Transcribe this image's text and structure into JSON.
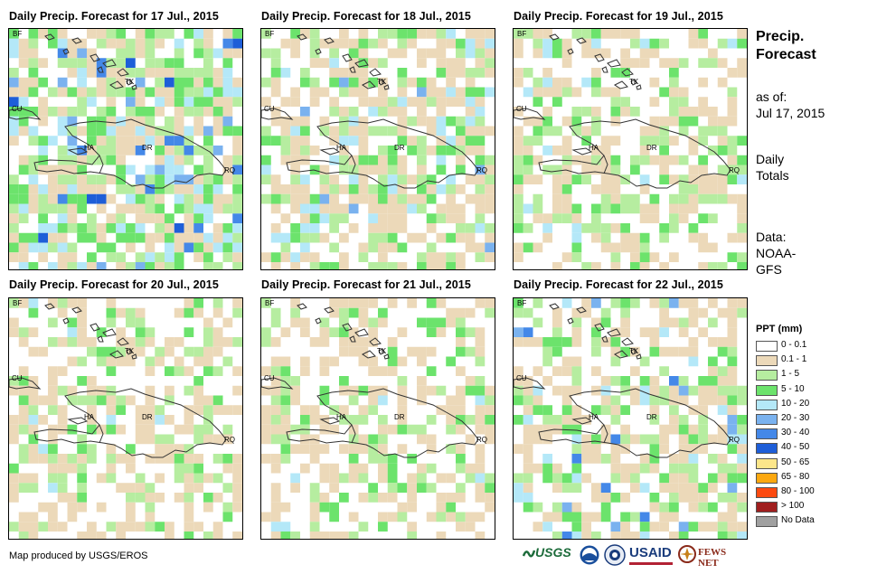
{
  "panels": [
    {
      "title": "Daily Precip. Forecast for 17 Jul., 2015",
      "day": 0
    },
    {
      "title": "Daily Precip. Forecast for 18 Jul., 2015",
      "day": 1
    },
    {
      "title": "Daily Precip. Forecast for 19 Jul., 2015",
      "day": 2
    },
    {
      "title": "Daily Precip. Forecast for 20 Jul., 2015",
      "day": 3
    },
    {
      "title": "Daily Precip. Forecast for 21 Jul., 2015",
      "day": 4
    },
    {
      "title": "Daily Precip. Forecast for 22 Jul., 2015",
      "day": 5
    }
  ],
  "map_labels": {
    "bf": "BF",
    "cu": "CU",
    "tk": "TK",
    "ha": "HA",
    "dr": "DR",
    "rq": "RQ"
  },
  "side": {
    "title_line1": "Precip.",
    "title_line2": "Forecast",
    "asof_line1": "as of:",
    "asof_line2": "Jul 17, 2015",
    "totals_line1": "Daily",
    "totals_line2": "Totals",
    "data_line1": "Data:",
    "data_line2": "NOAA-",
    "data_line3": "GFS"
  },
  "legend": {
    "title": "PPT (mm)",
    "items": [
      {
        "label": "0 - 0.1",
        "color": "#ffffff"
      },
      {
        "label": "0.1 - 1",
        "color": "#ecd9b9"
      },
      {
        "label": "1 - 5",
        "color": "#b6eda0"
      },
      {
        "label": "5 - 10",
        "color": "#6ce36c"
      },
      {
        "label": "10 - 20",
        "color": "#b4e8f8"
      },
      {
        "label": "20 - 30",
        "color": "#7ab2ef"
      },
      {
        "label": "30 - 40",
        "color": "#4488e8"
      },
      {
        "label": "40 - 50",
        "color": "#1e5ed8"
      },
      {
        "label": "50 - 65",
        "color": "#fce68a"
      },
      {
        "label": "65 - 80",
        "color": "#fca810"
      },
      {
        "label": "80 - 100",
        "color": "#fc4a10"
      },
      {
        "label": "> 100",
        "color": "#a01e1e"
      },
      {
        "label": "No Data",
        "color": "#a0a0a0"
      }
    ]
  },
  "credit": "Map produced by USGS/EROS",
  "logos": {
    "usgs": "USGS",
    "usaid": "USAID",
    "fewsnet": "FEWS NET"
  }
}
